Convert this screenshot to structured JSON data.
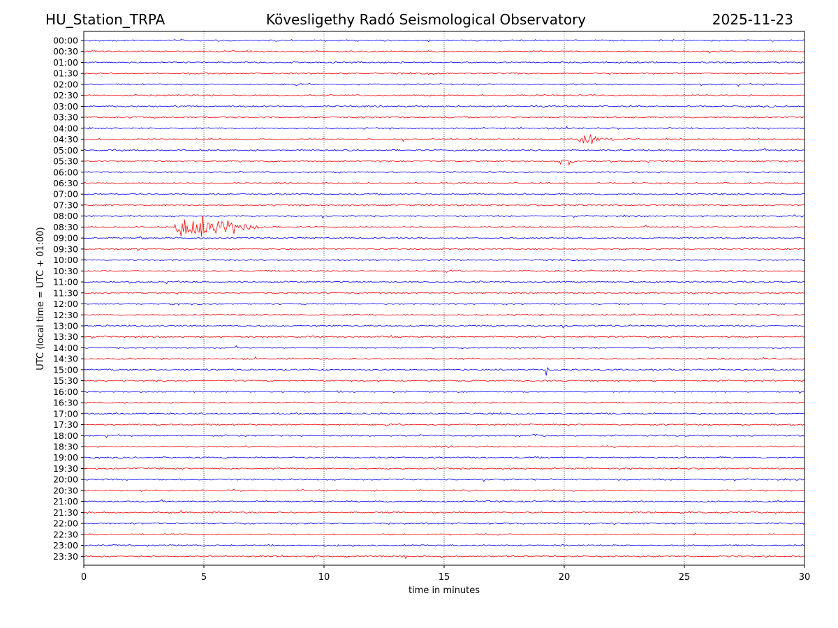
{
  "header": {
    "station": "HU_Station_TRPA",
    "observatory": "Kövesligethy Radó Seismological Observatory",
    "date": "2025-11-23"
  },
  "chart_data": {
    "type": "line",
    "title": "Kövesligethy Radó Seismological Observatory",
    "xlabel": "time in minutes",
    "ylabel": "UTC (local time = UTC + 01:00)",
    "xlim": [
      0,
      30
    ],
    "xticks": [
      0,
      5,
      10,
      15,
      20,
      25,
      30
    ],
    "grid": "vertical dotted at x ticks",
    "colors": {
      "even_rows": "#0000ff",
      "odd_rows": "#ff0000"
    },
    "row_labels": [
      "00:00",
      "00:30",
      "01:00",
      "01:30",
      "02:00",
      "02:30",
      "03:00",
      "03:30",
      "04:00",
      "04:30",
      "05:00",
      "05:30",
      "06:00",
      "06:30",
      "07:00",
      "07:30",
      "08:00",
      "08:30",
      "09:00",
      "09:30",
      "10:00",
      "10:30",
      "11:00",
      "11:30",
      "12:00",
      "12:30",
      "13:00",
      "13:30",
      "14:00",
      "14:30",
      "15:00",
      "15:30",
      "16:00",
      "16:30",
      "17:00",
      "17:30",
      "18:00",
      "18:30",
      "19:00",
      "19:30",
      "20:00",
      "20:30",
      "21:00",
      "21:30",
      "22:00",
      "22:30",
      "23:00",
      "23:30"
    ],
    "events": [
      {
        "row": "04:00",
        "start_min": 20.0,
        "duration_min": 0.5,
        "amplitude": 0.35
      },
      {
        "row": "04:30",
        "start_min": 20.5,
        "duration_min": 2.0,
        "amplitude": 0.9
      },
      {
        "row": "05:30",
        "start_min": 19.7,
        "duration_min": 0.9,
        "amplitude": 0.9
      },
      {
        "row": "08:30",
        "start_min": 3.75,
        "duration_min": 4.0,
        "amplitude": 2.0
      },
      {
        "row": "09:00",
        "start_min": 2.3,
        "duration_min": 0.3,
        "amplitude": 0.3
      },
      {
        "row": "13:30",
        "start_min": 12.75,
        "duration_min": 0.25,
        "amplitude": 0.6
      },
      {
        "row": "15:00",
        "start_min": 19.2,
        "duration_min": 0.3,
        "amplitude": 1.1
      },
      {
        "row": "18:00",
        "start_min": 18.6,
        "duration_min": 1.0,
        "amplitude": 0.35
      }
    ]
  }
}
